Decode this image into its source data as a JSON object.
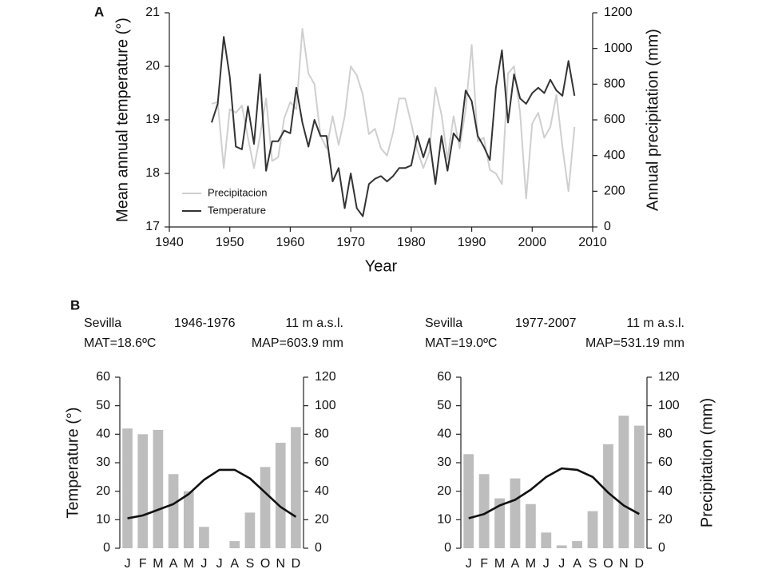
{
  "chart_data": [
    {
      "type": "combo",
      "label": "A",
      "x_label": "Year",
      "y_label": "Mean annual temperature (°)",
      "y2_label": "Annual precipitation (mm)",
      "x": [
        1947,
        1948,
        1949,
        1950,
        1951,
        1952,
        1953,
        1954,
        1955,
        1956,
        1957,
        1958,
        1959,
        1960,
        1961,
        1962,
        1963,
        1964,
        1965,
        1966,
        1967,
        1968,
        1969,
        1970,
        1971,
        1972,
        1973,
        1974,
        1975,
        1976,
        1977,
        1978,
        1979,
        1980,
        1981,
        1982,
        1983,
        1984,
        1985,
        1986,
        1987,
        1988,
        1989,
        1990,
        1991,
        1992,
        1993,
        1994,
        1995,
        1996,
        1997,
        1998,
        1999,
        2000,
        2001,
        2002,
        2003,
        2004,
        2005,
        2006,
        2007
      ],
      "series": [
        {
          "name": "Precipitacion",
          "color": "#cfcfcf",
          "axis": "y2",
          "kind": "line",
          "values": [
            690,
            700,
            330,
            660,
            640,
            680,
            500,
            330,
            510,
            720,
            370,
            390,
            610,
            700,
            660,
            1110,
            860,
            800,
            510,
            440,
            620,
            460,
            620,
            900,
            850,
            740,
            520,
            550,
            440,
            400,
            530,
            720,
            720,
            580,
            430,
            330,
            420,
            780,
            630,
            380,
            620,
            440,
            660,
            1020,
            480,
            500,
            320,
            300,
            240,
            860,
            900,
            640,
            160,
            580,
            640,
            500,
            560,
            740,
            450,
            200,
            560
          ]
        },
        {
          "name": "Temperature",
          "color": "#333333",
          "kind": "line",
          "values": [
            18.95,
            19.3,
            20.55,
            19.8,
            18.5,
            18.45,
            19.25,
            18.55,
            19.85,
            18.05,
            18.6,
            18.6,
            18.8,
            18.75,
            19.6,
            18.95,
            18.5,
            19.0,
            18.7,
            18.7,
            17.85,
            18.1,
            17.35,
            18.0,
            17.35,
            17.2,
            17.8,
            17.9,
            17.95,
            17.85,
            17.95,
            18.1,
            18.1,
            18.15,
            18.7,
            18.3,
            18.65,
            17.8,
            18.7,
            18.05,
            18.75,
            18.6,
            19.55,
            19.35,
            18.7,
            18.5,
            18.25,
            19.6,
            20.3,
            18.95,
            19.85,
            19.4,
            19.3,
            19.5,
            19.6,
            19.5,
            19.75,
            19.55,
            19.45,
            20.1,
            19.45
          ]
        }
      ],
      "xlim": [
        1940,
        2010
      ],
      "xticks": [
        1940,
        1950,
        1960,
        1970,
        1980,
        1990,
        2000,
        2010
      ],
      "ylim": [
        17,
        21
      ],
      "yticks": [
        17,
        18,
        19,
        20,
        21
      ],
      "y2lim": [
        0,
        1200
      ],
      "y2ticks": [
        0,
        200,
        400,
        600,
        800,
        1000,
        1200
      ],
      "legend": "lower left",
      "grid": false
    },
    {
      "type": "combo",
      "label": "B",
      "station": "Sevilla",
      "period": "1946-1976",
      "altitude": "11 m a.s.l.",
      "mat": "MAT=18.6ºC",
      "map": "MAP=603.9 mm",
      "y_label": "Temperature (°)",
      "categories": [
        "J",
        "F",
        "M",
        "A",
        "M",
        "J",
        "J",
        "A",
        "S",
        "O",
        "N",
        "D"
      ],
      "series": [
        {
          "color": "#bdbdbd",
          "axis": "y2",
          "kind": "bar",
          "values": [
            84,
            80,
            83,
            52,
            40,
            15,
            0,
            5,
            25,
            57,
            74,
            85
          ]
        },
        {
          "color": "#111111",
          "kind": "line",
          "values": [
            10.5,
            11.5,
            13.5,
            15.5,
            19,
            24,
            27.5,
            27.5,
            24.5,
            19.5,
            14.5,
            11
          ]
        }
      ],
      "ylim": [
        0,
        60
      ],
      "yticks": [
        0,
        10,
        20,
        30,
        40,
        50,
        60
      ],
      "y2lim": [
        0,
        120
      ],
      "y2ticks": [
        0,
        20,
        40,
        60,
        80,
        100,
        120
      ],
      "grid": false
    },
    {
      "type": "combo",
      "station": "Sevilla",
      "period": "1977-2007",
      "altitude": "11 m a.s.l.",
      "mat": "MAT=19.0ºC",
      "map": "MAP=531.19 mm",
      "y2_label": "Precipitation (mm)",
      "categories": [
        "J",
        "F",
        "M",
        "A",
        "M",
        "J",
        "J",
        "A",
        "S",
        "O",
        "N",
        "D"
      ],
      "series": [
        {
          "color": "#bdbdbd",
          "axis": "y2",
          "kind": "bar",
          "values": [
            66,
            52,
            35,
            49,
            31,
            11,
            2,
            5,
            26,
            73,
            93,
            86
          ]
        },
        {
          "color": "#111111",
          "kind": "line",
          "values": [
            10.5,
            12,
            15,
            17,
            20.5,
            25,
            28,
            27.5,
            25,
            19.5,
            15,
            12
          ]
        }
      ],
      "ylim": [
        0,
        60
      ],
      "yticks": [
        0,
        10,
        20,
        30,
        40,
        50,
        60
      ],
      "y2lim": [
        0,
        120
      ],
      "y2ticks": [
        0,
        20,
        40,
        60,
        80,
        100,
        120
      ],
      "grid": false
    }
  ]
}
